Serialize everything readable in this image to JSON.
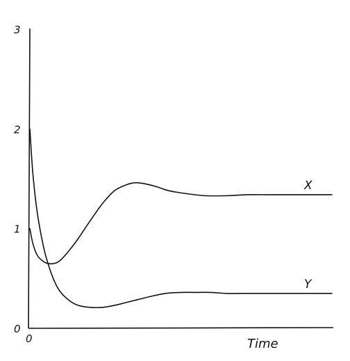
{
  "chart_data": {
    "type": "line",
    "title": "",
    "xlabel": "Time",
    "ylabel": "",
    "xlim": [
      0,
      10
    ],
    "ylim": [
      0,
      3
    ],
    "grid": false,
    "x_tick_labels": [
      "0"
    ],
    "y_tick_labels": [
      "0",
      "1",
      "2",
      "3"
    ],
    "y_ticks": [
      0,
      1,
      2,
      3
    ],
    "series": [
      {
        "name": "X",
        "x": [
          0,
          0.1,
          0.25,
          0.45,
          0.6,
          0.8,
          1.0,
          1.3,
          1.6,
          2.0,
          2.4,
          2.8,
          3.2,
          3.5,
          3.8,
          4.2,
          4.6,
          5.2,
          5.8,
          6.5,
          7.2,
          8.0,
          9.0,
          10.0
        ],
        "values": [
          1.0,
          0.85,
          0.73,
          0.67,
          0.65,
          0.65,
          0.68,
          0.78,
          0.9,
          1.08,
          1.25,
          1.38,
          1.44,
          1.46,
          1.45,
          1.42,
          1.38,
          1.35,
          1.33,
          1.33,
          1.34,
          1.34,
          1.34,
          1.34
        ],
        "end_label": "X"
      },
      {
        "name": "Y",
        "x": [
          0,
          0.1,
          0.25,
          0.45,
          0.6,
          0.8,
          1.0,
          1.3,
          1.6,
          2.0,
          2.4,
          2.8,
          3.2,
          3.6,
          4.0,
          4.5,
          5.0,
          5.5,
          6.0,
          6.5,
          7.0,
          8.0,
          9.0,
          10.0
        ],
        "values": [
          2.0,
          1.55,
          1.15,
          0.82,
          0.65,
          0.48,
          0.37,
          0.28,
          0.23,
          0.21,
          0.21,
          0.23,
          0.26,
          0.29,
          0.32,
          0.35,
          0.36,
          0.36,
          0.36,
          0.35,
          0.35,
          0.35,
          0.35,
          0.35
        ],
        "end_label": "Y"
      }
    ]
  }
}
